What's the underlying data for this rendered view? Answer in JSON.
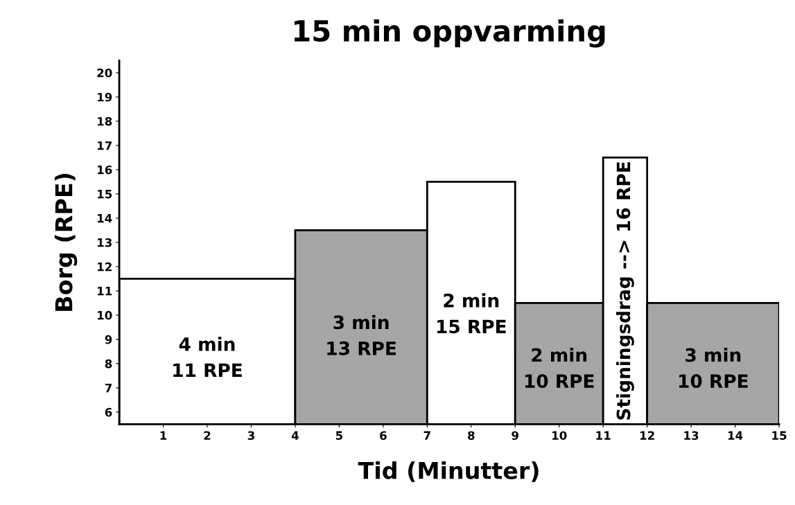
{
  "chart_data": {
    "type": "histogram",
    "title": "15 min oppvarming",
    "xlabel": "Tid (Minutter)",
    "ylabel": "Borg (RPE)",
    "bins": [
      0,
      4,
      7,
      9,
      11,
      12,
      15
    ],
    "values": [
      11,
      13,
      15,
      10,
      16,
      10
    ],
    "colors": [
      "#ffffff",
      "#a6a6a6",
      "#ffffff",
      "#a6a6a6",
      "#ffffff",
      "#a6a6a6"
    ],
    "xlim": [
      0,
      15
    ],
    "xticks": [
      1,
      2,
      3,
      4,
      5,
      6,
      7,
      8,
      9,
      10,
      11,
      12,
      13,
      14,
      15
    ],
    "ylim": [
      5,
      20
    ],
    "yticks": [
      {
        "value": 5.5,
        "label": "6"
      },
      {
        "value": 6.5,
        "label": "7"
      },
      {
        "value": 7.5,
        "label": "8"
      },
      {
        "value": 8.5,
        "label": "9"
      },
      {
        "value": 9.5,
        "label": "10"
      },
      {
        "value": 10.5,
        "label": "11"
      },
      {
        "value": 11.5,
        "label": "12"
      },
      {
        "value": 12.5,
        "label": "13"
      },
      {
        "value": 13.5,
        "label": "14"
      },
      {
        "value": 14.5,
        "label": "15"
      },
      {
        "value": 15.5,
        "label": "16"
      },
      {
        "value": 16.5,
        "label": "17"
      },
      {
        "value": 17.5,
        "label": "18"
      },
      {
        "value": 18.5,
        "label": "19"
      },
      {
        "value": 19.5,
        "label": "20"
      }
    ],
    "annotations": [
      "4 min\n11 RPE",
      "3 min\n13 RPE",
      "2 min\n15 RPE",
      "2 min\n10 RPE",
      "Stigningsdrag --> 16 RPE",
      "3 min\n10 RPE"
    ],
    "grid": false
  }
}
